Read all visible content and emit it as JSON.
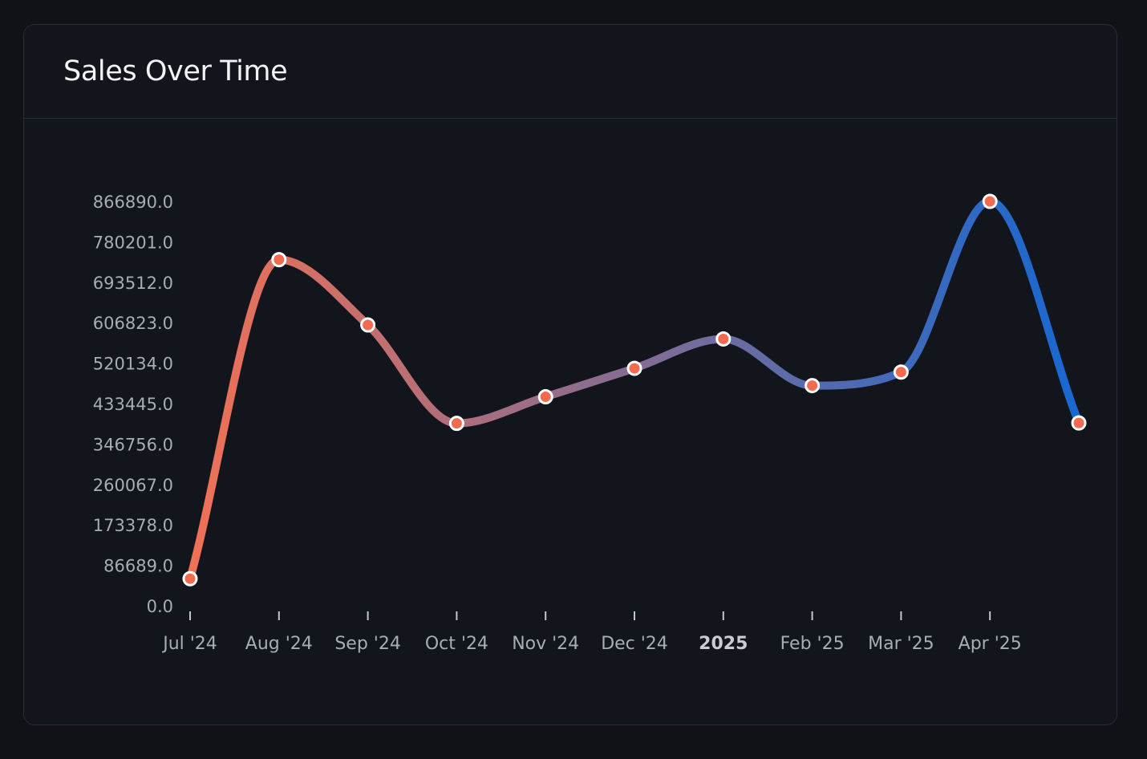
{
  "card": {
    "title": "Sales Over Time"
  },
  "colors": {
    "background": "#101217",
    "card_background": "#12151b",
    "border": "#262c38",
    "gradient_start": "#f07156",
    "gradient_end": "#1a68d0",
    "marker_fill": "#f26a4f",
    "marker_stroke": "#ffffff"
  },
  "chart_data": {
    "type": "line",
    "title": "Sales Over Time",
    "curve": "smooth",
    "grid": false,
    "legend": "none",
    "x": [
      "2024-07-01",
      "2024-08-01",
      "2024-09-01",
      "2024-10-01",
      "2024-11-01",
      "2024-12-01",
      "2025-01-01",
      "2025-02-01",
      "2025-03-01",
      "2025-04-01",
      "2025-05-01"
    ],
    "x_tick_labels": [
      "Jul '24",
      "Aug '24",
      "Sep '24",
      "Oct '24",
      "Nov '24",
      "Dec '24",
      "2025",
      "Feb '25",
      "Mar '25",
      "Apr '25"
    ],
    "x_tick_major": [
      false,
      false,
      false,
      false,
      false,
      false,
      true,
      false,
      false,
      false
    ],
    "y_ticks": [
      "0.0",
      "86689.0",
      "173378.0",
      "260067.0",
      "346756.0",
      "433445.0",
      "520134.0",
      "606823.0",
      "693512.0",
      "780201.0",
      "866890.0"
    ],
    "ylim": [
      0,
      866890
    ],
    "values": [
      58000,
      742000,
      602000,
      391000,
      448000,
      509000,
      572000,
      472000,
      501000,
      866890,
      392000
    ]
  }
}
